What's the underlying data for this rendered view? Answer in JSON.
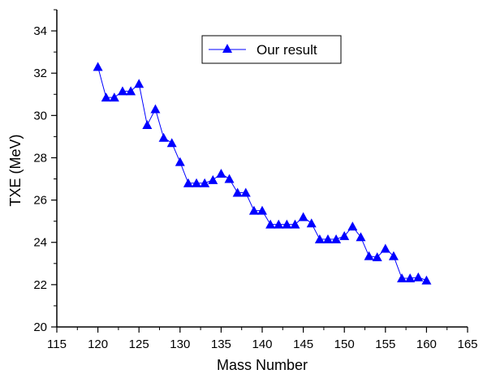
{
  "chart_data": {
    "type": "line",
    "title": "",
    "xlabel": "Mass Number",
    "ylabel": "TXE (MeV)",
    "xlim": [
      115,
      165
    ],
    "ylim": [
      20,
      35
    ],
    "x_ticks": [
      "115",
      "120",
      "125",
      "130",
      "135",
      "140",
      "145",
      "150",
      "155",
      "160",
      "165"
    ],
    "y_ticks": [
      "20",
      "22",
      "24",
      "26",
      "28",
      "30",
      "32",
      "34"
    ],
    "grid": false,
    "legend_position": "top-right",
    "marker": "triangle-up",
    "series": [
      {
        "name": "Our result",
        "color": "#0000ff",
        "x": [
          120,
          121,
          122,
          123,
          124,
          125,
          126,
          127,
          128,
          129,
          130,
          131,
          132,
          133,
          134,
          135,
          136,
          137,
          138,
          139,
          140,
          141,
          142,
          143,
          144,
          145,
          146,
          147,
          148,
          149,
          150,
          151,
          152,
          153,
          154,
          155,
          156,
          157,
          158,
          159,
          160
        ],
        "y": [
          32.3,
          30.85,
          30.85,
          31.15,
          31.15,
          31.5,
          29.55,
          30.3,
          28.95,
          28.7,
          27.8,
          26.8,
          26.8,
          26.8,
          26.95,
          27.25,
          27.0,
          26.35,
          26.35,
          25.5,
          25.5,
          24.85,
          24.85,
          24.85,
          24.85,
          25.2,
          24.9,
          24.15,
          24.15,
          24.15,
          24.3,
          24.75,
          24.25,
          23.35,
          23.3,
          23.7,
          23.35,
          22.3,
          22.3,
          22.35,
          22.2
        ]
      }
    ]
  }
}
